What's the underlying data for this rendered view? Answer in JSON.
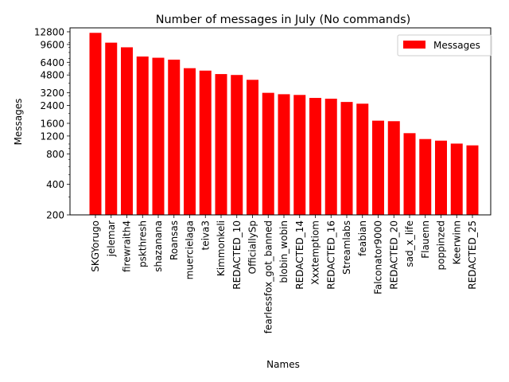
{
  "chart_data": {
    "type": "bar",
    "title": "Number of messages in July (No commands)",
    "xlabel": "Names",
    "ylabel": "Messages",
    "yscale": "log",
    "ylim": [
      200,
      14000
    ],
    "ytick_values": [
      200,
      400,
      800,
      1200,
      1600,
      2400,
      3200,
      4800,
      6400,
      9600,
      12800
    ],
    "ytick_labels": [
      "200",
      "400",
      "800",
      "1200",
      "1600",
      "2400",
      "3200",
      "4800",
      "6400",
      "9600",
      "12800"
    ],
    "categories": [
      "SKGYorugo",
      "jelemar",
      "firewraith4",
      "pskthresh",
      "shazanana",
      "Roansas",
      "muercielaga",
      "teiva3",
      "Kimmonkeli",
      "REDACTED_10",
      "OfficiallySp",
      "fearlessfox_got_banned",
      "blobin_wobin",
      "REDACTED_14",
      "Xxxtemptiom",
      "REDACTED_16",
      "Streamlabs",
      "feabian",
      "Falconator9000",
      "REDACTED_20",
      "sad_x_life",
      "Flauenn",
      "poppinzed",
      "Keerwinn",
      "REDACTED_25"
    ],
    "series": [
      {
        "name": "Messages",
        "color": "#ff0000",
        "values": [
          12500,
          10000,
          9000,
          7300,
          7100,
          6800,
          5600,
          5300,
          4900,
          4800,
          4300,
          3200,
          3100,
          3050,
          2850,
          2800,
          2600,
          2500,
          1700,
          1680,
          1280,
          1120,
          1080,
          1010,
          970
        ]
      }
    ],
    "legend": {
      "position": "top-right"
    },
    "grid": false
  }
}
